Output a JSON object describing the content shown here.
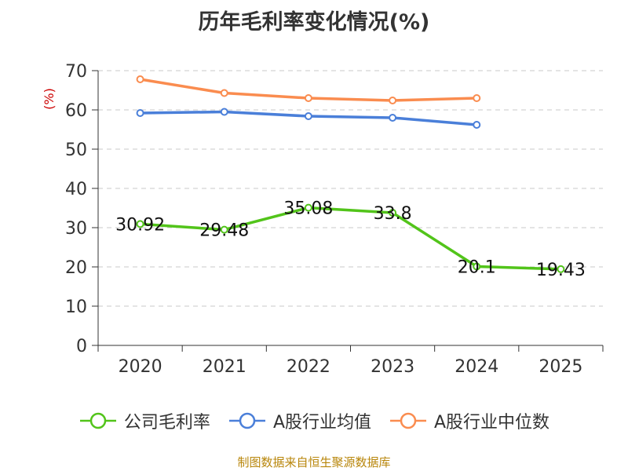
{
  "chart_data": {
    "type": "line",
    "title": "历年毛利率变化情况(%)",
    "ylabel": "(%)",
    "categories": [
      "2020",
      "2021",
      "2022",
      "2023",
      "2024",
      "2025"
    ],
    "ylim": [
      0,
      70
    ],
    "yticks": [
      0,
      10,
      20,
      30,
      40,
      50,
      60,
      70
    ],
    "grid": true,
    "legend_position": "bottom",
    "series": [
      {
        "name": "公司毛利率",
        "color": "#52c41a",
        "values": [
          30.92,
          29.48,
          35.08,
          33.8,
          20.1,
          19.43
        ],
        "labels": [
          "30.92",
          "29.48",
          "35.08",
          "33.8",
          "20.1",
          "19.43"
        ]
      },
      {
        "name": "A股行业均值",
        "color": "#4a7fd9",
        "values": [
          59.2,
          59.5,
          58.4,
          58.0,
          56.2,
          null
        ]
      },
      {
        "name": "A股行业中位数",
        "color": "#fa8c4f",
        "values": [
          67.8,
          64.3,
          63.0,
          62.4,
          63.0,
          null
        ]
      }
    ],
    "source": "制图数据来自恒生聚源数据库"
  }
}
